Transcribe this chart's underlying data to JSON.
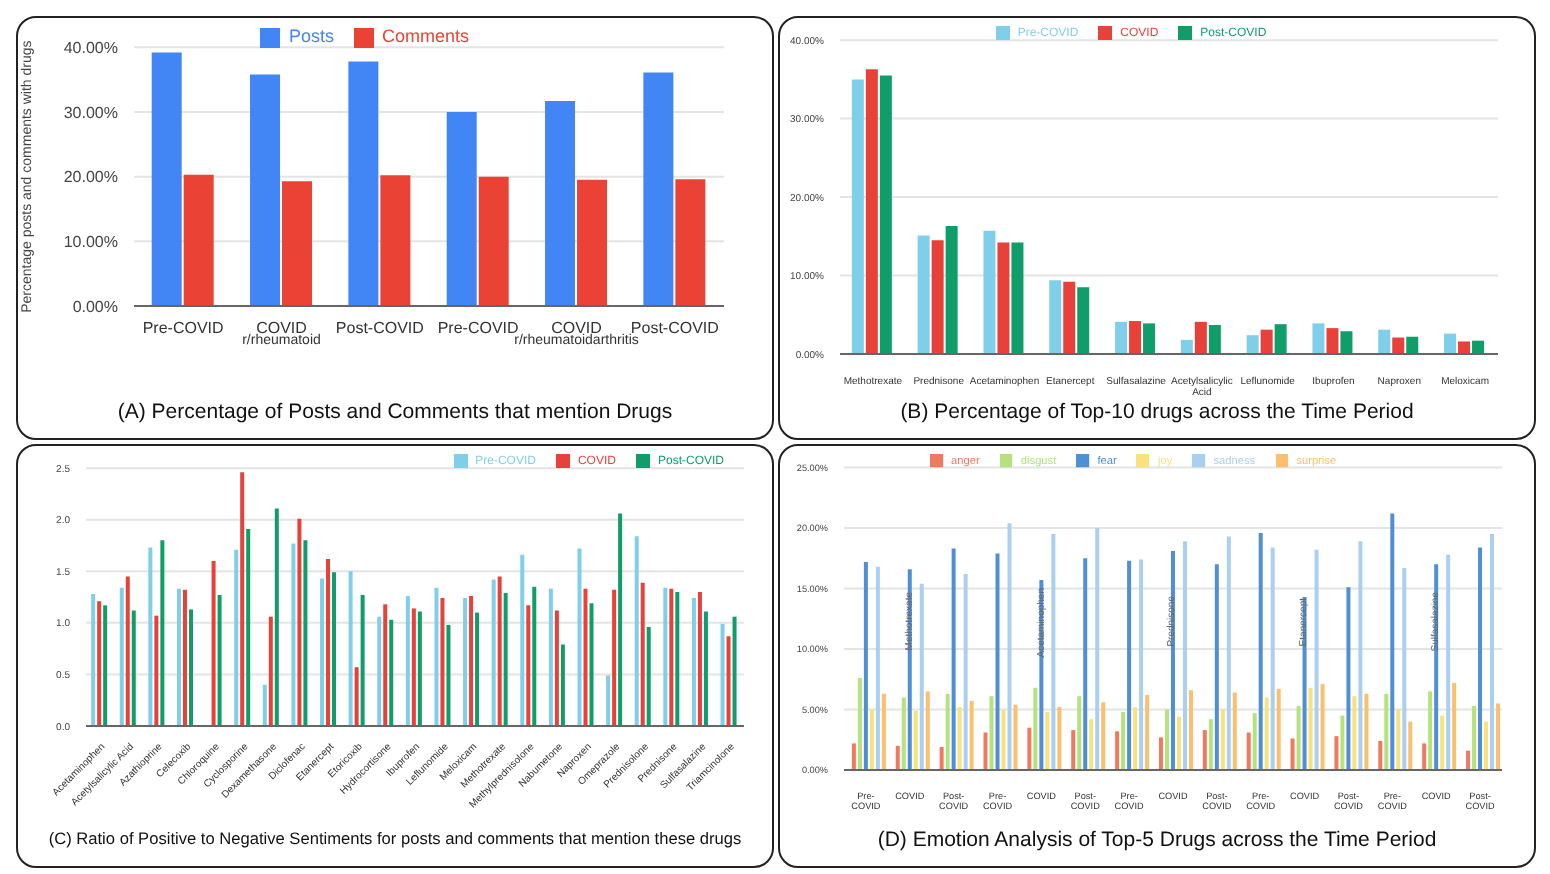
{
  "chart_data": [
    {
      "type": "bar",
      "title": "(A) Percentage of Posts and Comments that mention Drugs",
      "ylabel": "Percentage posts and comments with drugs",
      "categories": [
        "Pre-COVID",
        "COVID",
        "Post-COVID",
        "Pre-COVID",
        "COVID",
        "Post-COVID"
      ],
      "annotations": [
        "r/rheumatoid",
        "r/rheumatoidarthritis"
      ],
      "series": [
        {
          "name": "Posts",
          "color": "#4285f4",
          "values": [
            39.2,
            35.8,
            37.8,
            30.0,
            31.7,
            36.1
          ]
        },
        {
          "name": "Comments",
          "color": "#ea4335",
          "values": [
            20.3,
            19.3,
            20.2,
            20.0,
            19.5,
            19.6
          ]
        }
      ],
      "ylim": [
        0,
        40
      ],
      "yticks": [
        {
          "value": 0,
          "label": "0.00%"
        },
        {
          "value": 10,
          "label": "10.00%"
        },
        {
          "value": 20,
          "label": "20.00%"
        },
        {
          "value": 30,
          "label": "30.00%"
        },
        {
          "value": 40,
          "label": "40.00%"
        }
      ],
      "grid": "y",
      "legend": "top"
    },
    {
      "type": "bar",
      "title": "(B) Percentage of Top-10 drugs across the Time Period",
      "categories": [
        "Methotrexate",
        "Prednisone",
        "Acetaminophen",
        "Etanercept",
        "Sulfasalazine",
        "Acetylsalicylic Acid",
        "Leflunomide",
        "Ibuprofen",
        "Naproxen",
        "Meloxicam"
      ],
      "series": [
        {
          "name": "Pre-COVID",
          "color": "#80cfea",
          "values": [
            35.0,
            15.1,
            15.7,
            9.4,
            4.1,
            1.8,
            2.4,
            3.9,
            3.1,
            2.6
          ]
        },
        {
          "name": "COVID",
          "color": "#e8413a",
          "values": [
            36.3,
            14.5,
            14.2,
            9.2,
            4.2,
            4.1,
            3.1,
            3.3,
            2.1,
            1.6
          ]
        },
        {
          "name": "Post-COVID",
          "color": "#0f9d6a",
          "values": [
            35.5,
            16.3,
            14.2,
            8.5,
            3.9,
            3.7,
            3.8,
            2.9,
            2.2,
            1.7
          ]
        }
      ],
      "ylim": [
        0,
        40
      ],
      "yticks": [
        {
          "value": 0,
          "label": "0.00%"
        },
        {
          "value": 10,
          "label": "10.00%"
        },
        {
          "value": 20,
          "label": "20.00%"
        },
        {
          "value": 30,
          "label": "30.00%"
        },
        {
          "value": 40,
          "label": "40.00%"
        }
      ],
      "grid": "y",
      "legend": "top"
    },
    {
      "type": "bar",
      "title": "(C) Ratio of Positive to Negative Sentiments for posts and comments that mention these drugs",
      "categories": [
        "Acetaminophen",
        "Acetylsalicylic Acid",
        "Azathioprine",
        "Celecoxib",
        "Chloroquine",
        "Cyclosporine",
        "Dexamethasone",
        "Diclofenac",
        "Etanercept",
        "Etoricoxib",
        "Hydrocortisone",
        "Ibuprofen",
        "Leflunomide",
        "Meloxicam",
        "Methotrexate",
        "Methylprednisolone",
        "Nabumetone",
        "Naproxen",
        "Omeprazole",
        "Prednisolone",
        "Prednisone",
        "Sulfasalazine",
        "Triamcinolone"
      ],
      "series": [
        {
          "name": "Pre-COVID",
          "color": "#80cfea",
          "values": [
            1.28,
            1.34,
            1.73,
            1.33,
            null,
            1.71,
            0.4,
            1.77,
            1.43,
            1.5,
            1.06,
            1.26,
            1.34,
            1.24,
            1.42,
            1.66,
            1.33,
            1.72,
            0.49,
            1.84,
            1.34,
            1.24,
            0.99
          ]
        },
        {
          "name": "COVID",
          "color": "#e8413a",
          "values": [
            1.21,
            1.45,
            1.07,
            1.32,
            1.6,
            2.46,
            1.06,
            2.01,
            1.62,
            0.57,
            1.18,
            1.14,
            1.24,
            1.26,
            1.45,
            1.17,
            1.12,
            1.33,
            1.32,
            1.39,
            1.33,
            1.3,
            0.87
          ]
        },
        {
          "name": "Post-COVID",
          "color": "#0f9d6a",
          "values": [
            1.17,
            1.12,
            1.8,
            1.13,
            1.27,
            1.91,
            2.11,
            1.8,
            1.49,
            1.27,
            1.03,
            1.11,
            0.98,
            1.1,
            1.29,
            1.35,
            0.79,
            1.19,
            2.06,
            0.96,
            1.3,
            1.11,
            1.06
          ]
        }
      ],
      "ylim": [
        0,
        2.5
      ],
      "yticks": [
        {
          "value": 0,
          "label": "0.0"
        },
        0.5,
        {
          "value": 1,
          "label": "1.0"
        },
        1.5,
        {
          "value": 2,
          "label": "2.0"
        },
        2.5
      ],
      "grid": "y",
      "legend": "top right"
    },
    {
      "type": "bar",
      "title": "(D) Emotion Analysis of Top-5 Drugs across the Time Period",
      "categories": [
        "Pre-COVID",
        "COVID",
        "Post-COVID",
        "Pre-COVID",
        "COVID",
        "Post-COVID",
        "Pre-COVID",
        "COVID",
        "Post-COVID",
        "Pre-COVID",
        "COVID",
        "Post-COVID",
        "Pre-COVID",
        "COVID",
        "Post-COVID"
      ],
      "annotations": [
        "Methotrexate",
        "Acetaminophen",
        "Prednisone",
        "Etanercept",
        "Sulfasalazine"
      ],
      "series": [
        {
          "name": "anger",
          "color": "#f07a60",
          "values": [
            2.2,
            2.0,
            1.9,
            3.1,
            3.5,
            3.3,
            3.2,
            2.7,
            3.3,
            3.1,
            2.6,
            2.8,
            2.4,
            2.2,
            1.6
          ]
        },
        {
          "name": "disgust",
          "color": "#b5e27a",
          "values": [
            7.6,
            6.0,
            6.3,
            6.1,
            6.8,
            6.1,
            4.8,
            5.0,
            4.2,
            4.7,
            5.3,
            4.5,
            6.3,
            6.5,
            5.3
          ]
        },
        {
          "name": "fear",
          "color": "#4f8fd6",
          "values": [
            17.2,
            16.6,
            18.3,
            17.9,
            15.7,
            17.5,
            17.3,
            18.1,
            17.0,
            19.6,
            14.3,
            15.1,
            21.2,
            17.0,
            18.4
          ]
        },
        {
          "name": "joy",
          "color": "#f8e27e",
          "values": [
            5.0,
            4.9,
            5.2,
            5.0,
            4.8,
            4.2,
            5.2,
            4.4,
            5.0,
            6.0,
            6.8,
            6.1,
            5.0,
            4.5,
            4.0
          ]
        },
        {
          "name": "sadness",
          "color": "#a9d0f0",
          "values": [
            16.8,
            15.4,
            16.2,
            20.4,
            19.5,
            20.0,
            17.4,
            18.9,
            19.3,
            18.4,
            18.2,
            18.9,
            16.7,
            17.8,
            19.5
          ]
        },
        {
          "name": "surprise",
          "color": "#fbbf6e",
          "values": [
            6.3,
            6.5,
            5.7,
            5.4,
            5.2,
            5.6,
            6.2,
            6.6,
            6.4,
            6.7,
            7.1,
            6.3,
            4.0,
            7.2,
            5.5
          ]
        }
      ],
      "ylim": [
        0,
        25
      ],
      "yticks": [
        {
          "value": 0,
          "label": "0.00%"
        },
        {
          "value": 5,
          "label": "5.00%"
        },
        {
          "value": 10,
          "label": "10.00%"
        },
        {
          "value": 15,
          "label": "15.00%"
        },
        {
          "value": 20,
          "label": "20.00%"
        },
        {
          "value": 25,
          "label": "25.00%"
        }
      ],
      "grid": "y",
      "legend": "top"
    }
  ]
}
